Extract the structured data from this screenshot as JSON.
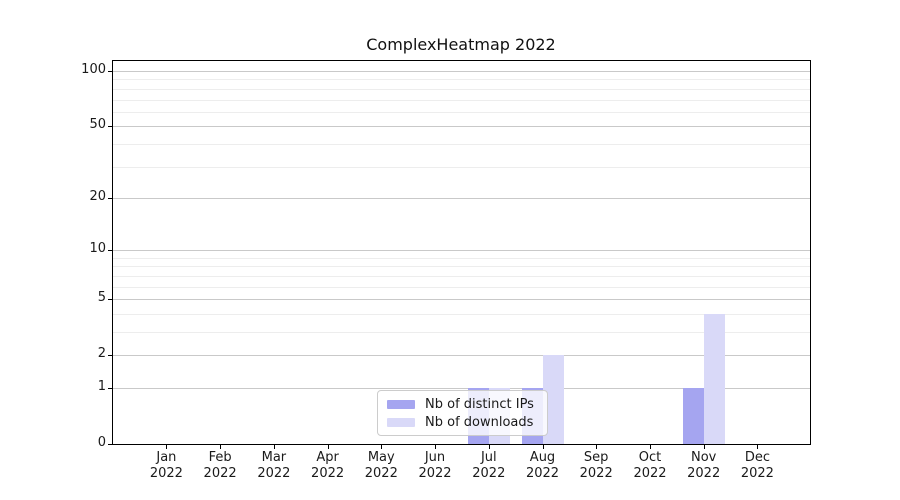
{
  "chart_data": {
    "type": "bar",
    "title": "ComplexHeatmap 2022",
    "year_label": "2022",
    "categories": [
      "Jan",
      "Feb",
      "Mar",
      "Apr",
      "May",
      "Jun",
      "Jul",
      "Aug",
      "Sep",
      "Oct",
      "Nov",
      "Dec"
    ],
    "series": [
      {
        "name": "Nb of distinct IPs",
        "color": "#a5a5f0",
        "values": [
          0,
          0,
          0,
          0,
          0,
          0,
          1,
          1,
          0,
          0,
          1,
          0
        ]
      },
      {
        "name": "Nb of downloads",
        "color": "#d9d9f8",
        "values": [
          0,
          0,
          0,
          0,
          0,
          0,
          1,
          2,
          0,
          0,
          4,
          0
        ]
      }
    ],
    "yscale": "log1p",
    "ylim": [
      0,
      113
    ],
    "y_major_ticks": [
      0,
      1,
      2,
      5,
      10,
      20,
      50,
      100
    ],
    "y_minor_ticks": [
      3,
      4,
      6,
      7,
      8,
      9,
      30,
      40,
      60,
      70,
      80,
      90
    ],
    "grid": "horizontal",
    "legend_position": "lower-center-over-jul-aug",
    "colors": {
      "major_grid": "#c9c9c9",
      "minor_grid": "#ededed",
      "spine": "#000000",
      "legend_border": "#cccccc"
    }
  }
}
